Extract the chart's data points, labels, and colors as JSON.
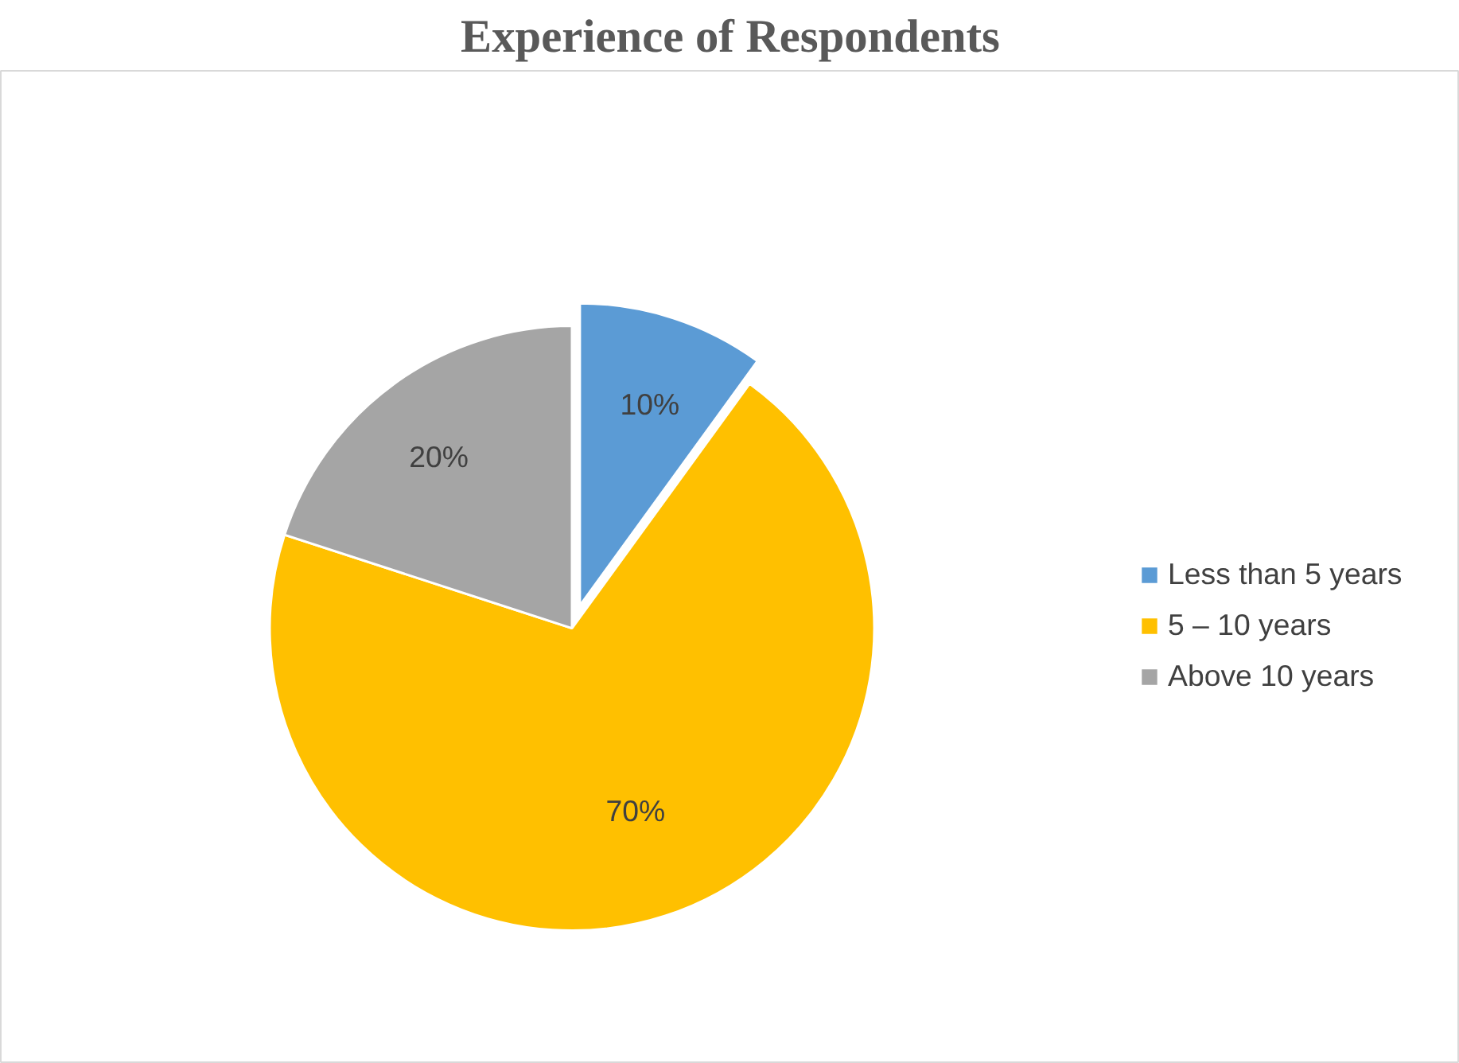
{
  "chart_data": {
    "type": "pie",
    "title": "Experience of Respondents",
    "categories": [
      "Less than 5 years",
      "5 – 10 years",
      "Above 10 years"
    ],
    "values": [
      10,
      70,
      20
    ],
    "colors": [
      "#5b9bd5",
      "#ffc000",
      "#a5a5a5"
    ],
    "value_labels": [
      "10%",
      "70%",
      "20%"
    ],
    "legend": "right"
  }
}
